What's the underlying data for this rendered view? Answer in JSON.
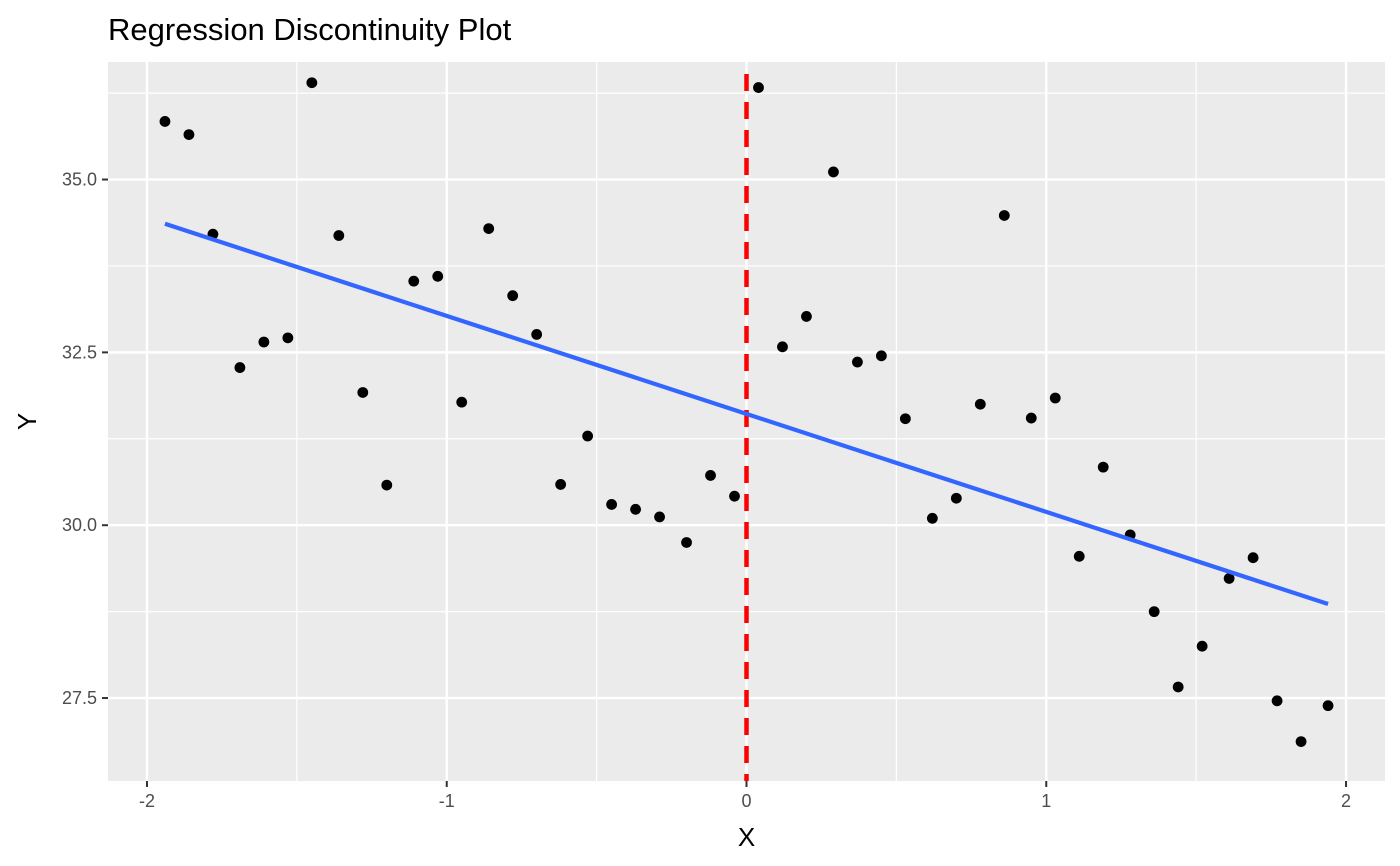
{
  "chart_data": {
    "type": "scatter",
    "title": "Regression Discontinuity Plot",
    "xlabel": "X",
    "ylabel": "Y",
    "xlim": [
      -2.13,
      2.13
    ],
    "ylim": [
      26.3,
      36.7
    ],
    "x_ticks": [
      {
        "value": -2,
        "label": "-2"
      },
      {
        "value": -1,
        "label": "-1"
      },
      {
        "value": 0,
        "label": "0"
      },
      {
        "value": 1,
        "label": "1"
      },
      {
        "value": 2,
        "label": "2"
      }
    ],
    "y_ticks": [
      {
        "value": 27.5,
        "label": "27.5"
      },
      {
        "value": 30.0,
        "label": "30.0"
      },
      {
        "value": 32.5,
        "label": "32.5"
      },
      {
        "value": 35.0,
        "label": "35.0"
      }
    ],
    "grid": true,
    "points": [
      {
        "x": -1.94,
        "y": 35.84
      },
      {
        "x": -1.86,
        "y": 35.65
      },
      {
        "x": -1.78,
        "y": 34.21
      },
      {
        "x": -1.69,
        "y": 32.28
      },
      {
        "x": -1.61,
        "y": 32.65
      },
      {
        "x": -1.53,
        "y": 32.71
      },
      {
        "x": -1.45,
        "y": 36.4
      },
      {
        "x": -1.36,
        "y": 34.19
      },
      {
        "x": -1.28,
        "y": 31.92
      },
      {
        "x": -1.2,
        "y": 30.58
      },
      {
        "x": -1.11,
        "y": 33.53
      },
      {
        "x": -1.03,
        "y": 33.6
      },
      {
        "x": -0.95,
        "y": 31.78
      },
      {
        "x": -0.86,
        "y": 34.29
      },
      {
        "x": -0.78,
        "y": 33.32
      },
      {
        "x": -0.7,
        "y": 32.76
      },
      {
        "x": -0.62,
        "y": 30.59
      },
      {
        "x": -0.53,
        "y": 31.29
      },
      {
        "x": -0.45,
        "y": 30.3
      },
      {
        "x": -0.37,
        "y": 30.23
      },
      {
        "x": -0.29,
        "y": 30.12
      },
      {
        "x": -0.2,
        "y": 29.75
      },
      {
        "x": -0.12,
        "y": 30.72
      },
      {
        "x": -0.04,
        "y": 30.42
      },
      {
        "x": 0.04,
        "y": 36.33
      },
      {
        "x": 0.12,
        "y": 32.58
      },
      {
        "x": 0.2,
        "y": 33.02
      },
      {
        "x": 0.29,
        "y": 35.11
      },
      {
        "x": 0.37,
        "y": 32.36
      },
      {
        "x": 0.45,
        "y": 32.45
      },
      {
        "x": 0.53,
        "y": 31.54
      },
      {
        "x": 0.62,
        "y": 30.1
      },
      {
        "x": 0.7,
        "y": 30.39
      },
      {
        "x": 0.78,
        "y": 31.75
      },
      {
        "x": 0.86,
        "y": 34.48
      },
      {
        "x": 0.95,
        "y": 31.55
      },
      {
        "x": 1.03,
        "y": 31.84
      },
      {
        "x": 1.11,
        "y": 29.55
      },
      {
        "x": 1.19,
        "y": 30.84
      },
      {
        "x": 1.28,
        "y": 29.86
      },
      {
        "x": 1.36,
        "y": 28.75
      },
      {
        "x": 1.44,
        "y": 27.66
      },
      {
        "x": 1.52,
        "y": 28.25
      },
      {
        "x": 1.61,
        "y": 29.23
      },
      {
        "x": 1.69,
        "y": 29.53
      },
      {
        "x": 1.77,
        "y": 27.46
      },
      {
        "x": 1.85,
        "y": 26.87
      },
      {
        "x": 1.94,
        "y": 27.39
      }
    ],
    "fit_line": {
      "x": [
        -1.94,
        1.94
      ],
      "y": [
        34.36,
        28.86
      ],
      "color": "#3366ff"
    },
    "cutoff": {
      "x": 0,
      "color": "#ff0000",
      "style": "dashed"
    },
    "colors": {
      "panel": "#ebebeb",
      "grid": "#ffffff",
      "points": "#000000",
      "tick_text": "#4d4d4d",
      "tick_mark": "#333333"
    }
  }
}
